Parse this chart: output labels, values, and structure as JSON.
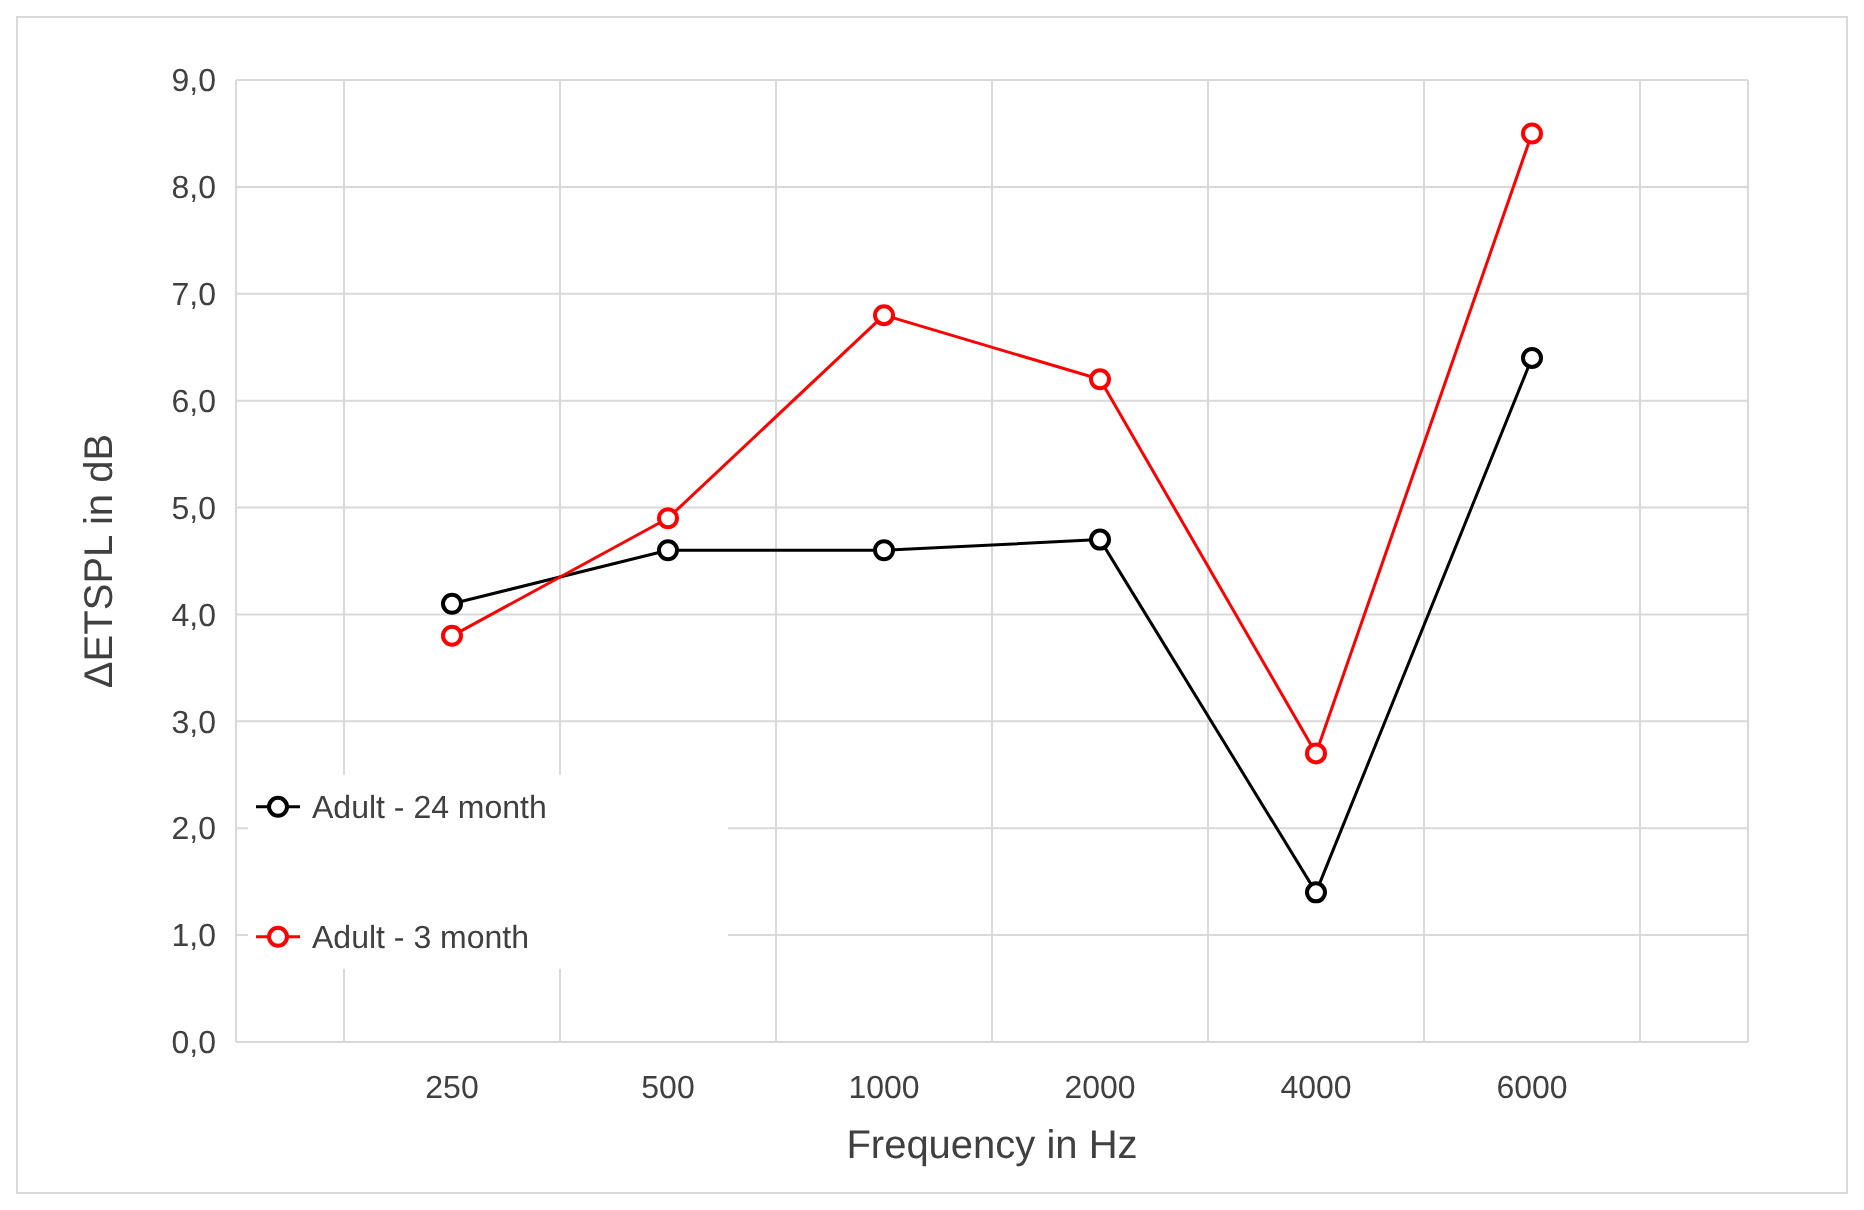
{
  "chart_data": {
    "type": "line",
    "xlabel": "Frequency in Hz",
    "ylabel": "ΔETSPL in dB",
    "categories": [
      "250",
      "500",
      "1000",
      "2000",
      "4000",
      "6000"
    ],
    "series": [
      {
        "name": "Adult - 24 month",
        "color": "#000000",
        "values": [
          4.1,
          4.6,
          4.6,
          4.7,
          1.4,
          6.4
        ]
      },
      {
        "name": "Adult - 3 month",
        "color": "#ff0000",
        "values": [
          3.8,
          4.9,
          6.8,
          6.2,
          2.7,
          8.5
        ]
      }
    ],
    "ylim": [
      0,
      9
    ],
    "yticks": [
      {
        "value": 0,
        "label": "0,0"
      },
      {
        "value": 1,
        "label": "1,0"
      },
      {
        "value": 2,
        "label": "2,0"
      },
      {
        "value": 3,
        "label": "3,0"
      },
      {
        "value": 4,
        "label": "4,0"
      },
      {
        "value": 5,
        "label": "5,0"
      },
      {
        "value": 6,
        "label": "6,0"
      },
      {
        "value": 7,
        "label": "7,0"
      },
      {
        "value": 8,
        "label": "8,0"
      },
      {
        "value": 9,
        "label": "9,0"
      }
    ],
    "grid": true,
    "legend": "bottom left",
    "marker": "circle",
    "line_style": "solid"
  }
}
